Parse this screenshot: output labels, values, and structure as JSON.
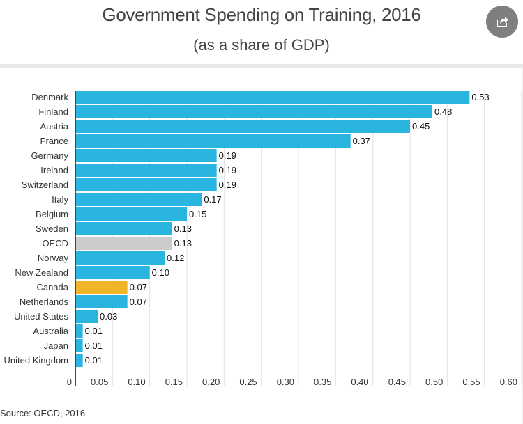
{
  "header": {
    "title": "Government Spending on Training, 2016",
    "subtitle": "(as a share of GDP)",
    "share_icon": "share-icon"
  },
  "footer": {
    "source": "Source: OECD, 2016"
  },
  "colors": {
    "default": "#29b5e0",
    "oecd": "#cccccc",
    "canada": "#f0b428",
    "grid": "#e2e2e2",
    "axis": "#444444"
  },
  "chart_data": {
    "type": "bar",
    "orientation": "horizontal",
    "title": "Government Spending on Training, 2016",
    "subtitle": "(as a share of GDP)",
    "xlabel": "",
    "ylabel": "",
    "xlim": [
      0,
      0.6
    ],
    "grid": true,
    "categories": [
      "Denmark",
      "Finland",
      "Austria",
      "France",
      "Germany",
      "Ireland",
      "Switzerland",
      "Italy",
      "Belgium",
      "Sweden",
      "OECD",
      "Norway",
      "New Zealand",
      "Canada",
      "Netherlands",
      "United States",
      "Australia",
      "Japan",
      "United Kingdom"
    ],
    "values": [
      0.53,
      0.48,
      0.45,
      0.37,
      0.19,
      0.19,
      0.19,
      0.17,
      0.15,
      0.13,
      0.13,
      0.12,
      0.1,
      0.07,
      0.07,
      0.03,
      0.01,
      0.01,
      0.01
    ],
    "value_labels": [
      "0.53",
      "0.48",
      "0.45",
      "0.37",
      "0.19",
      "0.19",
      "0.19",
      "0.17",
      "0.15",
      "0.13",
      "0.13",
      "0.12",
      "0.10",
      "0.07",
      "0.07",
      "0.03",
      "0.01",
      "0.01",
      "0.01"
    ],
    "highlights": {
      "OECD": "oecd",
      "Canada": "canada"
    },
    "x_ticks": [
      0,
      0.05,
      0.1,
      0.15,
      0.2,
      0.25,
      0.3,
      0.35,
      0.4,
      0.45,
      0.5,
      0.55,
      0.6
    ],
    "x_tick_labels": [
      "0",
      "0.05",
      "0.10",
      "0.15",
      "0.20",
      "0.25",
      "0.30",
      "0.35",
      "0.40",
      "0.45",
      "0.50",
      "0.55",
      "0.60"
    ],
    "source": "Source: OECD, 2016"
  }
}
